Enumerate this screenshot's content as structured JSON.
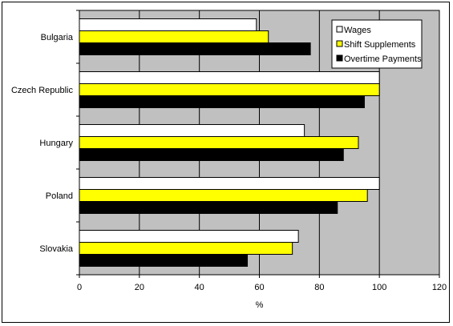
{
  "chart_data": {
    "type": "bar",
    "orientation": "horizontal",
    "categories": [
      "Bulgaria",
      "Czech Republic",
      "Hungary",
      "Poland",
      "Slovakia"
    ],
    "series": [
      {
        "name": "Wages",
        "color": "#ffffff",
        "values": [
          59,
          100,
          75,
          100,
          73
        ]
      },
      {
        "name": "Shift Supplements",
        "color": "#ffff00",
        "values": [
          63,
          100,
          93,
          96,
          71
        ]
      },
      {
        "name": "Overtime Payments",
        "color": "#000000",
        "values": [
          77,
          95,
          88,
          86,
          56
        ]
      }
    ],
    "xlabel": "%",
    "xlim": [
      0,
      120
    ],
    "xticks": [
      0,
      20,
      40,
      60,
      80,
      100,
      120
    ],
    "plot_background": "#c0c0c0",
    "gridlines": "vertical",
    "legend_position": "top-right"
  }
}
